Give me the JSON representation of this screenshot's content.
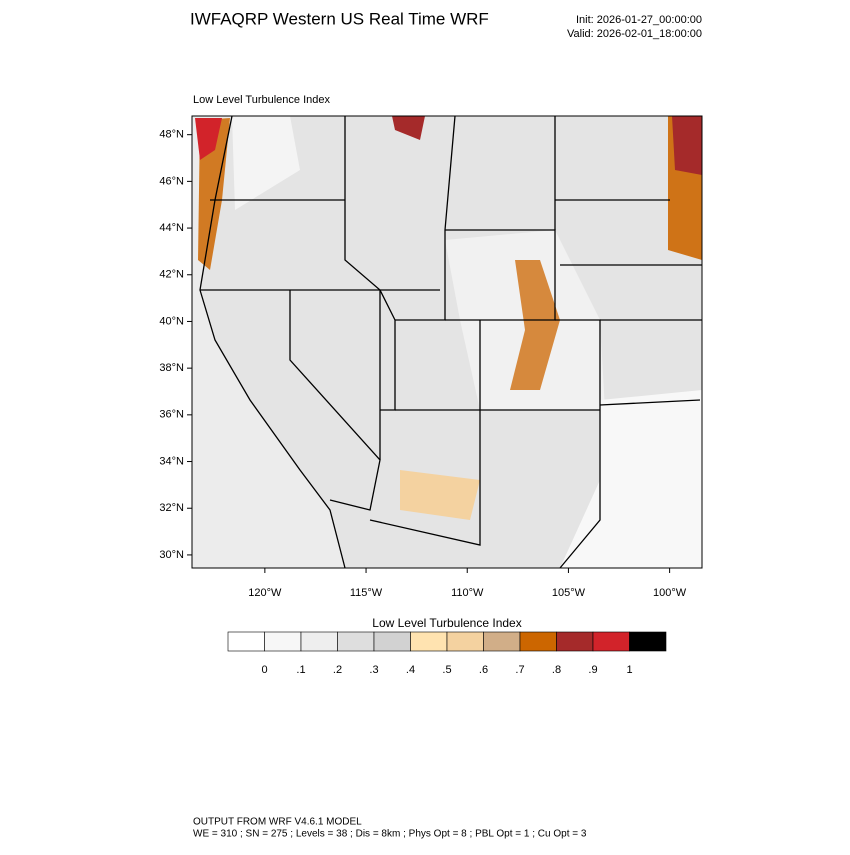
{
  "header": {
    "title": "IWFAQRP Western US Real Time WRF",
    "init": "Init: 2026-01-27_00:00:00",
    "valid": "Valid: 2026-02-01_18:00:00"
  },
  "map": {
    "subtitle": "Low Level Turbulence Index",
    "lat_lim": [
      29.44,
      48.8
    ],
    "lon_lim": [
      -123.6,
      -98.4
    ],
    "lat_ticks": [
      {
        "value": 30,
        "label": "30°N"
      },
      {
        "value": 32,
        "label": "32°N"
      },
      {
        "value": 34,
        "label": "34°N"
      },
      {
        "value": 36,
        "label": "36°N"
      },
      {
        "value": 38,
        "label": "38°N"
      },
      {
        "value": 40,
        "label": "40°N"
      },
      {
        "value": 42,
        "label": "42°N"
      },
      {
        "value": 44,
        "label": "44°N"
      },
      {
        "value": 46,
        "label": "46°N"
      },
      {
        "value": 48,
        "label": "48°N"
      }
    ],
    "lon_ticks": [
      {
        "value": -120,
        "label": "120°W"
      },
      {
        "value": -115,
        "label": "115°W"
      },
      {
        "value": -110,
        "label": "110°W"
      },
      {
        "value": -105,
        "label": "105°W"
      },
      {
        "value": -100,
        "label": "100°W"
      }
    ]
  },
  "colorbar": {
    "title": "Low Level Turbulence Index",
    "colors": [
      "#ffffff",
      "#f7f7f7",
      "#eeeeee",
      "#dedede",
      "#d2d2d2",
      "#ffe3b0",
      "#f4d2a0",
      "#d1ae88",
      "#cc6600",
      "#a52a2a",
      "#d2232a",
      "#000000"
    ],
    "ticks": [
      0,
      {
        "value": 0.1,
        "label": ".1"
      },
      {
        "value": 0.2,
        "label": ".2"
      },
      {
        "value": 0.3,
        "label": ".3"
      },
      {
        "value": 0.4,
        "label": ".4"
      },
      {
        "value": 0.5,
        "label": ".5"
      },
      {
        "value": 0.6,
        "label": ".6"
      },
      {
        "value": 0.7,
        "label": ".7"
      },
      {
        "value": 0.8,
        "label": ".8"
      },
      {
        "value": 0.9,
        "label": ".9"
      },
      1
    ]
  },
  "footer": {
    "line1": "OUTPUT FROM WRF V4.6.1 MODEL",
    "line2": "WE = 310 ; SN = 275 ; Levels = 38 ; Dis = 8km ; Phys Opt = 8 ; PBL Opt = 1 ; Cu Opt = 3"
  }
}
